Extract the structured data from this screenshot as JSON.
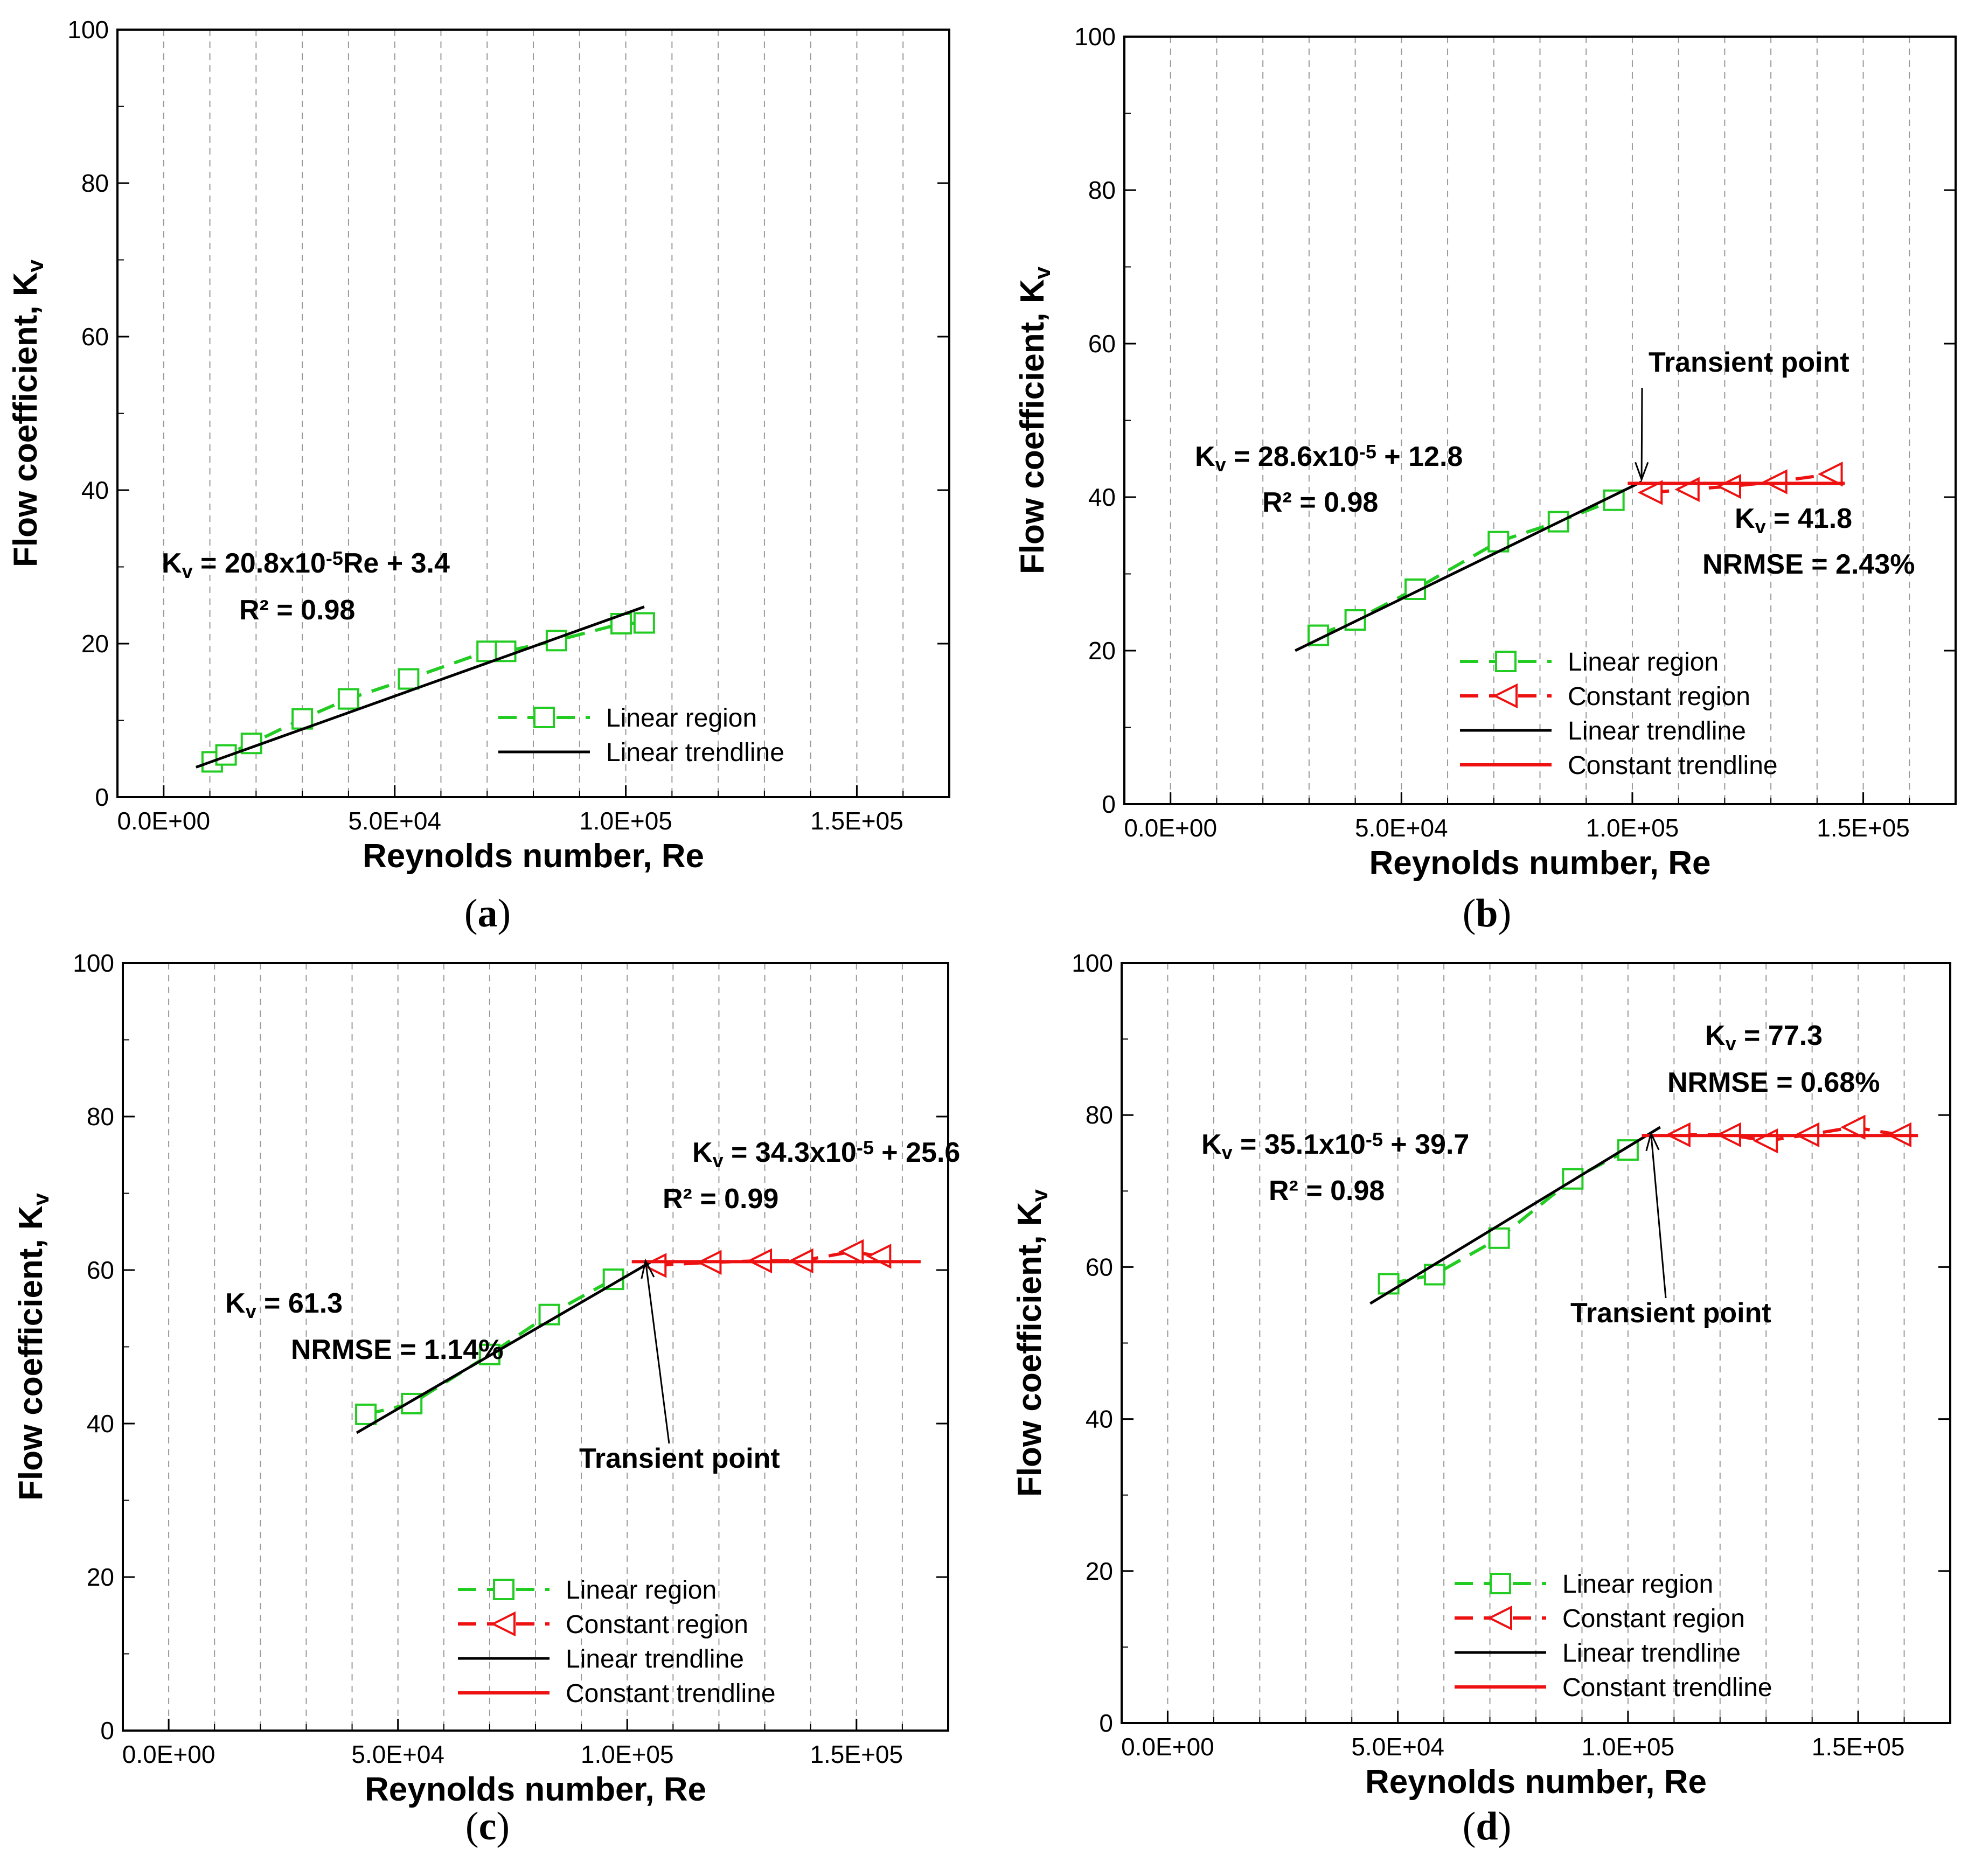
{
  "chart_data": [
    {
      "panel": "(a)",
      "type": "line",
      "xlabel": "Reynolds number, Re",
      "ylabel": [
        "Flow coefficient, K",
        "v"
      ],
      "xlim": [
        -10000,
        170000
      ],
      "ylim": [
        0,
        100
      ],
      "xticks": [
        "0.0E+00",
        "5.0E+04",
        "1.0E+05",
        "1.5E+05"
      ],
      "yticks": [
        "0",
        "20",
        "40",
        "60",
        "80",
        "100"
      ],
      "grid": "vertical dashed",
      "series": [
        {
          "name": "Linear region",
          "style": "green dashed, square markers",
          "x": [
            10500,
            13500,
            19000,
            30000,
            40000,
            53000,
            70000,
            74000,
            85000,
            99000,
            104000
          ],
          "y": [
            4.6,
            5.5,
            7.0,
            10.2,
            12.8,
            15.4,
            19.0,
            19.0,
            20.4,
            22.6,
            22.7
          ]
        },
        {
          "name": "Linear trendline",
          "style": "black solid",
          "x": [
            7000,
            104000
          ],
          "y": [
            3.9,
            24.8
          ]
        }
      ],
      "annotations": [
        [
          {
            "t": "K"
          },
          {
            "t": "v",
            "sub": true
          },
          {
            "t": " = 20.8x10"
          },
          {
            "t": "-5",
            "sup": true
          },
          {
            "t": "Re + 3.4"
          }
        ],
        [
          {
            "t": "R² = 0.98"
          }
        ]
      ],
      "legend_position": "bottom-right"
    },
    {
      "panel": "(b)",
      "type": "line",
      "xlabel": "Reynolds number, Re",
      "ylabel": [
        "Flow coefficient, K",
        "v"
      ],
      "xlim": [
        -10000,
        170000
      ],
      "ylim": [
        0,
        100
      ],
      "xticks": [
        "0.0E+00",
        "5.0E+04",
        "1.0E+05",
        "1.5E+05"
      ],
      "yticks": [
        "0",
        "20",
        "40",
        "60",
        "80",
        "100"
      ],
      "grid": "vertical dashed",
      "series": [
        {
          "name": "Linear region",
          "style": "green dashed, square markers",
          "x": [
            32000,
            40000,
            53000,
            71000,
            84000,
            96000
          ],
          "y": [
            22.0,
            24.0,
            28.0,
            34.2,
            36.8,
            39.6
          ]
        },
        {
          "name": "Constant region",
          "style": "red dashed, left-triangle markers",
          "x": [
            104000,
            112000,
            121000,
            131000,
            143000
          ],
          "y": [
            40.6,
            41.0,
            41.4,
            42.0,
            43.0
          ]
        },
        {
          "name": "Linear trendline",
          "style": "black solid",
          "x": [
            27000,
            102000
          ],
          "y": [
            20.0,
            42.0
          ]
        },
        {
          "name": "Constant trendline",
          "style": "red solid",
          "x": [
            99000,
            146000
          ],
          "y": [
            41.8,
            41.8
          ]
        }
      ],
      "annotations": [
        [
          {
            "t": "K"
          },
          {
            "t": "v",
            "sub": true
          },
          {
            "t": " = 28.6x10"
          },
          {
            "t": "-5",
            "sup": true
          },
          {
            "t": " + 12.8"
          }
        ],
        [
          {
            "t": "R² = 0.98"
          }
        ],
        [
          {
            "t": "K"
          },
          {
            "t": "v",
            "sub": true
          },
          {
            "t": " = 41.8"
          }
        ],
        [
          {
            "t": "NRMSE = 2.43%"
          }
        ],
        [
          {
            "t": "Transient point"
          }
        ]
      ],
      "legend_position": "bottom-right"
    },
    {
      "panel": "(c)",
      "type": "line",
      "xlabel": "Reynolds number, Re",
      "ylabel": [
        "Flow coefficient, K",
        "v"
      ],
      "xlim": [
        -10000,
        170000
      ],
      "ylim": [
        0,
        100
      ],
      "xticks": [
        "0.0E+00",
        "5.0E+04",
        "1.0E+05",
        "1.5E+05"
      ],
      "yticks": [
        "0",
        "20",
        "40",
        "60",
        "80",
        "100"
      ],
      "grid": "vertical dashed",
      "series": [
        {
          "name": "Linear region",
          "style": "green dashed, square markers",
          "x": [
            43000,
            53000,
            70000,
            83000,
            97000
          ],
          "y": [
            41.2,
            42.6,
            49.0,
            54.2,
            58.8
          ]
        },
        {
          "name": "Constant region",
          "style": "red dashed, left-triangle markers",
          "x": [
            106000,
            118000,
            129000,
            138000,
            149000,
            155000
          ],
          "y": [
            60.6,
            61.0,
            61.2,
            61.2,
            62.4,
            61.8
          ]
        },
        {
          "name": "Linear trendline",
          "style": "black solid",
          "x": [
            41000,
            105000
          ],
          "y": [
            38.8,
            61.0
          ]
        },
        {
          "name": "Constant trendline",
          "style": "red solid",
          "x": [
            101000,
            164000
          ],
          "y": [
            61.1,
            61.1
          ]
        }
      ],
      "annotations": [
        [
          {
            "t": "K"
          },
          {
            "t": "v",
            "sub": true
          },
          {
            "t": " = 34.3x10"
          },
          {
            "t": "-5",
            "sup": true
          },
          {
            "t": " + 25.6"
          }
        ],
        [
          {
            "t": "R² = 0.99"
          }
        ],
        [
          {
            "t": "K"
          },
          {
            "t": "v",
            "sub": true
          },
          {
            "t": " = 61.3"
          }
        ],
        [
          {
            "t": "NRMSE = 1.14%"
          }
        ],
        [
          {
            "t": "Transient point"
          }
        ]
      ],
      "legend_position": "bottom-right"
    },
    {
      "panel": "(d)",
      "type": "line",
      "xlabel": "Reynolds number, Re",
      "ylabel": [
        "Flow coefficient, K",
        "v"
      ],
      "xlim": [
        -10000,
        170000
      ],
      "ylim": [
        0,
        100
      ],
      "xticks": [
        "0.0E+00",
        "5.0E+04",
        "1.0E+05",
        "1.5E+05"
      ],
      "yticks": [
        "0",
        "20",
        "40",
        "60",
        "80",
        "100"
      ],
      "grid": "vertical dashed",
      "series": [
        {
          "name": "Linear region",
          "style": "green dashed, square markers",
          "x": [
            48000,
            58000,
            72000,
            88000,
            100000
          ],
          "y": [
            57.8,
            59.0,
            63.8,
            71.6,
            75.4
          ]
        },
        {
          "name": "Constant region",
          "style": "red dashed, left-triangle markers",
          "x": [
            111000,
            122000,
            130000,
            139000,
            149000,
            159000
          ],
          "y": [
            77.4,
            77.4,
            76.6,
            77.4,
            78.4,
            77.4
          ]
        },
        {
          "name": "Linear trendline",
          "style": "black solid",
          "x": [
            44000,
            107000
          ],
          "y": [
            55.2,
            78.4
          ]
        },
        {
          "name": "Constant trendline",
          "style": "red solid",
          "x": [
            103000,
            163000
          ],
          "y": [
            77.3,
            77.3
          ]
        }
      ],
      "annotations": [
        [
          {
            "t": "K"
          },
          {
            "t": "v",
            "sub": true
          },
          {
            "t": " = 77.3"
          }
        ],
        [
          {
            "t": "NRMSE = 0.68%"
          }
        ],
        [
          {
            "t": "K"
          },
          {
            "t": "v",
            "sub": true
          },
          {
            "t": " = 35.1x10"
          },
          {
            "t": "-5",
            "sup": true
          },
          {
            "t": " + 39.7"
          }
        ],
        [
          {
            "t": "R² = 0.98"
          }
        ],
        [
          {
            "t": "Transient point"
          }
        ]
      ],
      "legend_position": "bottom-right"
    }
  ],
  "colors": {
    "linear_region": "#22cc22",
    "constant_region": "#ee1111",
    "linear_trend": "#000000",
    "constant_trend": "#ee1111",
    "grid": "#9a9a9a"
  }
}
